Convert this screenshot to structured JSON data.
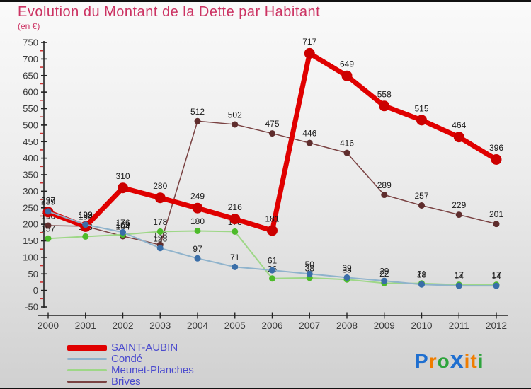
{
  "page": {
    "title": "Evolution du Montant de la Dette par Habitant",
    "subtitle": "(en €)"
  },
  "chart_data": {
    "type": "line",
    "title": "Evolution du Montant de la Dette par Habitant",
    "subtitle": "(en €)",
    "x": [
      2000,
      2001,
      2002,
      2003,
      2004,
      2005,
      2006,
      2007,
      2008,
      2009,
      2010,
      2011,
      2012
    ],
    "ylim": [
      -50,
      750
    ],
    "ytick_step": 50,
    "grid": false,
    "legend_position": "bottom-left",
    "axis_color": "#222222",
    "minor_tick_color": "#cc3333",
    "label_color": "#1a1a1a",
    "tick_label_color": "#3a3a3a",
    "series": [
      {
        "name": "SAINT-AUBIN",
        "color": "#e00000",
        "dot_color": "#cc0000",
        "width": 7,
        "dot_r": 7.5,
        "values": [
          237,
          193,
          310,
          280,
          249,
          216,
          181,
          717,
          649,
          558,
          515,
          464,
          396
        ]
      },
      {
        "name": "Condé",
        "color": "#8fb3cc",
        "dot_color": "#3a6ea8",
        "width": 2,
        "dot_r": 4.5,
        "values": [
          239,
          199,
          176,
          128,
          97,
          71,
          61,
          50,
          39,
          29,
          18,
          14,
          14
        ]
      },
      {
        "name": "Meunet-Planches",
        "color": "#9ed787",
        "dot_color": "#4dbb2a",
        "width": 2,
        "dot_r": 4.5,
        "values": [
          157,
          163,
          169,
          178,
          180,
          178,
          36,
          38,
          33,
          22,
          21,
          17,
          17
        ]
      },
      {
        "name": "Brives",
        "color": "#7a4242",
        "dot_color": "#5f2d2d",
        "width": 1.5,
        "dot_r": 4.5,
        "values": [
          196,
          194,
          164,
          138,
          512,
          502,
          475,
          446,
          416,
          289,
          257,
          229,
          201
        ]
      }
    ]
  },
  "legend": {
    "items": [
      "SAINT-AUBIN",
      "Condé",
      "Meunet-Planches",
      "Brives"
    ]
  },
  "logo": {
    "name": "Proxiti",
    "letters": [
      {
        "ch": "P",
        "color": "#1f6fd0",
        "size": 28
      },
      {
        "ch": "r",
        "color": "#f07d00",
        "size": 28
      },
      {
        "ch": "o",
        "color": "#2ea43c",
        "size": 28
      },
      {
        "ch": "x",
        "color": "#1f6fd0",
        "size": 34
      },
      {
        "ch": "i",
        "color": "#f07d00",
        "size": 28
      },
      {
        "ch": "t",
        "color": "#f07d00",
        "size": 28
      },
      {
        "ch": "i",
        "color": "#2ea43c",
        "size": 28
      }
    ]
  }
}
